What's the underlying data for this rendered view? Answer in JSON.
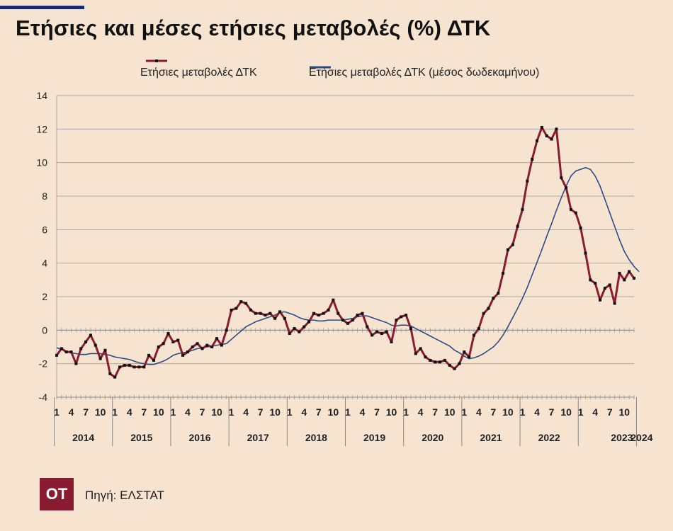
{
  "header": {
    "title": "Ετήσιες και μέσες ετήσιες μεταβολές (%) ΔΤΚ"
  },
  "footer": {
    "logo": "OT",
    "source": "Πηγή: ΕΛΣΤΑΤ"
  },
  "chart_data": {
    "type": "line",
    "title": "Ετήσιες και μέσες ετήσιες μεταβολές (%) ΔΤΚ",
    "xlabel": "",
    "ylabel": "",
    "ylim": [
      -4,
      14
    ],
    "yticks": [
      -4,
      -2,
      0,
      2,
      4,
      6,
      8,
      10,
      12,
      14
    ],
    "grid": true,
    "legend_position": "top",
    "month_tick_labels": [
      "1",
      "4",
      "7",
      "10"
    ],
    "years": [
      "2014",
      "2015",
      "2016",
      "2017",
      "2018",
      "2019",
      "2020",
      "2021",
      "2022",
      "2023",
      "2024"
    ],
    "x_start": "2014-01",
    "x_end": "2024-01",
    "colors": {
      "annual": "#8a1c31",
      "marker": "#111111",
      "average": "#2d4b86",
      "grid": "#a8a8a8"
    },
    "series": [
      {
        "name": "Ετήσιες μεταβολές ΔΤΚ",
        "values": [
          -1.5,
          -1.1,
          -1.3,
          -1.3,
          -2.0,
          -1.1,
          -0.7,
          -0.3,
          -0.9,
          -1.7,
          -1.2,
          -2.6,
          -2.8,
          -2.2,
          -2.1,
          -2.1,
          -2.2,
          -2.2,
          -2.2,
          -1.5,
          -1.8,
          -1.0,
          -0.8,
          -0.2,
          -0.7,
          -0.6,
          -1.5,
          -1.3,
          -1.0,
          -0.8,
          -1.1,
          -0.9,
          -1.0,
          -0.5,
          -0.9,
          0.0,
          1.2,
          1.3,
          1.7,
          1.6,
          1.2,
          1.0,
          1.0,
          0.9,
          1.0,
          0.7,
          1.1,
          0.7,
          -0.2,
          0.1,
          -0.1,
          0.2,
          0.5,
          1.0,
          0.9,
          1.0,
          1.2,
          1.8,
          1.0,
          0.6,
          0.4,
          0.6,
          0.9,
          1.0,
          0.2,
          -0.3,
          -0.1,
          -0.2,
          -0.1,
          -0.7,
          0.6,
          0.8,
          0.9,
          0.1,
          -1.4,
          -1.1,
          -1.6,
          -1.8,
          -1.9,
          -1.9,
          -1.8,
          -2.1,
          -2.3,
          -2.0,
          -1.3,
          -1.6,
          -0.3,
          0.1,
          1.0,
          1.3,
          1.9,
          2.2,
          3.4,
          4.8,
          5.1,
          6.2,
          7.2,
          8.9,
          10.2,
          11.3,
          12.1,
          11.6,
          11.4,
          12.0,
          9.1,
          8.5,
          7.2,
          7.0,
          6.1,
          4.6,
          3.0,
          2.8,
          1.8,
          2.5,
          2.7,
          1.6,
          3.4,
          3.0,
          3.5,
          3.1
        ]
      },
      {
        "name": "Ετήσιες μεταβολές ΔΤΚ (μέσος δωδεκαμήνου)",
        "values": [
          -1.05,
          -1.15,
          -1.25,
          -1.35,
          -1.4,
          -1.45,
          -1.45,
          -1.4,
          -1.4,
          -1.4,
          -1.45,
          -1.5,
          -1.6,
          -1.65,
          -1.7,
          -1.75,
          -1.85,
          -1.95,
          -2.0,
          -2.05,
          -2.05,
          -1.95,
          -1.85,
          -1.7,
          -1.5,
          -1.4,
          -1.35,
          -1.3,
          -1.2,
          -1.1,
          -1.05,
          -1.0,
          -0.95,
          -0.9,
          -0.85,
          -0.8,
          -0.55,
          -0.3,
          -0.05,
          0.2,
          0.35,
          0.5,
          0.6,
          0.7,
          0.8,
          0.9,
          1.05,
          1.1,
          1.0,
          0.9,
          0.75,
          0.65,
          0.6,
          0.6,
          0.55,
          0.55,
          0.6,
          0.6,
          0.6,
          0.6,
          0.65,
          0.7,
          0.8,
          0.85,
          0.85,
          0.75,
          0.65,
          0.55,
          0.45,
          0.3,
          0.25,
          0.3,
          0.3,
          0.25,
          0.1,
          -0.05,
          -0.2,
          -0.35,
          -0.5,
          -0.65,
          -0.8,
          -0.95,
          -1.2,
          -1.35,
          -1.55,
          -1.7,
          -1.65,
          -1.55,
          -1.4,
          -1.2,
          -1.0,
          -0.7,
          -0.3,
          0.2,
          0.75,
          1.3,
          1.9,
          2.55,
          3.3,
          4.05,
          4.8,
          5.6,
          6.35,
          7.15,
          7.9,
          8.6,
          9.2,
          9.5,
          9.6,
          9.7,
          9.6,
          9.2,
          8.6,
          7.8,
          7.0,
          6.2,
          5.4,
          4.7,
          4.2,
          3.8,
          3.5
        ]
      }
    ]
  }
}
